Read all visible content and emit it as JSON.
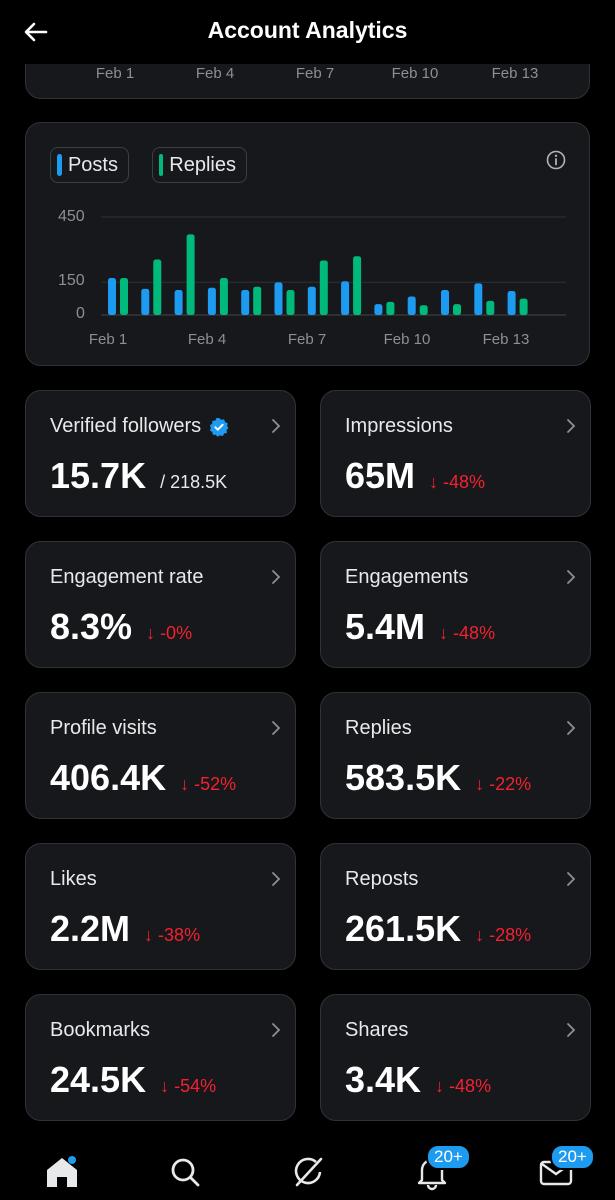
{
  "header": {
    "title": "Account Analytics",
    "back_icon": "arrow-left-icon"
  },
  "top_chart_dates": [
    "Feb 1",
    "Feb 4",
    "Feb 7",
    "Feb 10",
    "Feb 13"
  ],
  "chart_data": {
    "type": "bar",
    "legend": [
      "Posts",
      "Replies"
    ],
    "yticks": [
      "450",
      "150",
      "0"
    ],
    "xticks": [
      "Feb 1",
      "Feb 4",
      "Feb 7",
      "Feb 10",
      "Feb 13"
    ],
    "ylim": [
      0,
      450
    ],
    "grid": true,
    "categories": [
      "Feb 1",
      "Feb 2",
      "Feb 3",
      "Feb 4",
      "Feb 5",
      "Feb 6",
      "Feb 7",
      "Feb 8",
      "Feb 9",
      "Feb 10",
      "Feb 11",
      "Feb 12",
      "Feb 13",
      "Feb 14"
    ],
    "series": [
      {
        "name": "Posts",
        "color": "#1d9bf0",
        "values": [
          170,
          120,
          115,
          125,
          115,
          150,
          130,
          155,
          50,
          85,
          115,
          145,
          110,
          0
        ]
      },
      {
        "name": "Replies",
        "color": "#00ba7c",
        "values": [
          170,
          255,
          370,
          170,
          130,
          115,
          250,
          270,
          60,
          45,
          50,
          65,
          75,
          0
        ]
      }
    ]
  },
  "metrics": [
    {
      "label": "Verified followers",
      "value": "15.7K",
      "sub": "/ 218.5K"
    },
    {
      "label": "Impressions",
      "value": "65M",
      "change": "↓ -48%"
    },
    {
      "label": "Engagement rate",
      "value": "8.3%",
      "change": "↓ -0%"
    },
    {
      "label": "Engagements",
      "value": "5.4M",
      "change": "↓ -48%"
    },
    {
      "label": "Profile visits",
      "value": "406.4K",
      "change": "↓ -52%"
    },
    {
      "label": "Replies",
      "value": "583.5K",
      "change": "↓ -22%"
    },
    {
      "label": "Likes",
      "value": "2.2M",
      "change": "↓ -38%"
    },
    {
      "label": "Reposts",
      "value": "261.5K",
      "change": "↓ -28%"
    },
    {
      "label": "Bookmarks",
      "value": "24.5K",
      "change": "↓ -54%"
    },
    {
      "label": "Shares",
      "value": "3.4K",
      "change": "↓ -48%"
    }
  ],
  "nav": {
    "notifications_badge": "20+",
    "messages_badge": "20+",
    "icons": [
      "home-icon",
      "search-icon",
      "grok-icon",
      "bell-icon",
      "mail-icon"
    ]
  },
  "colors": {
    "accent": "#1d9bf0",
    "replies": "#00ba7c",
    "negative": "#f4212e"
  }
}
